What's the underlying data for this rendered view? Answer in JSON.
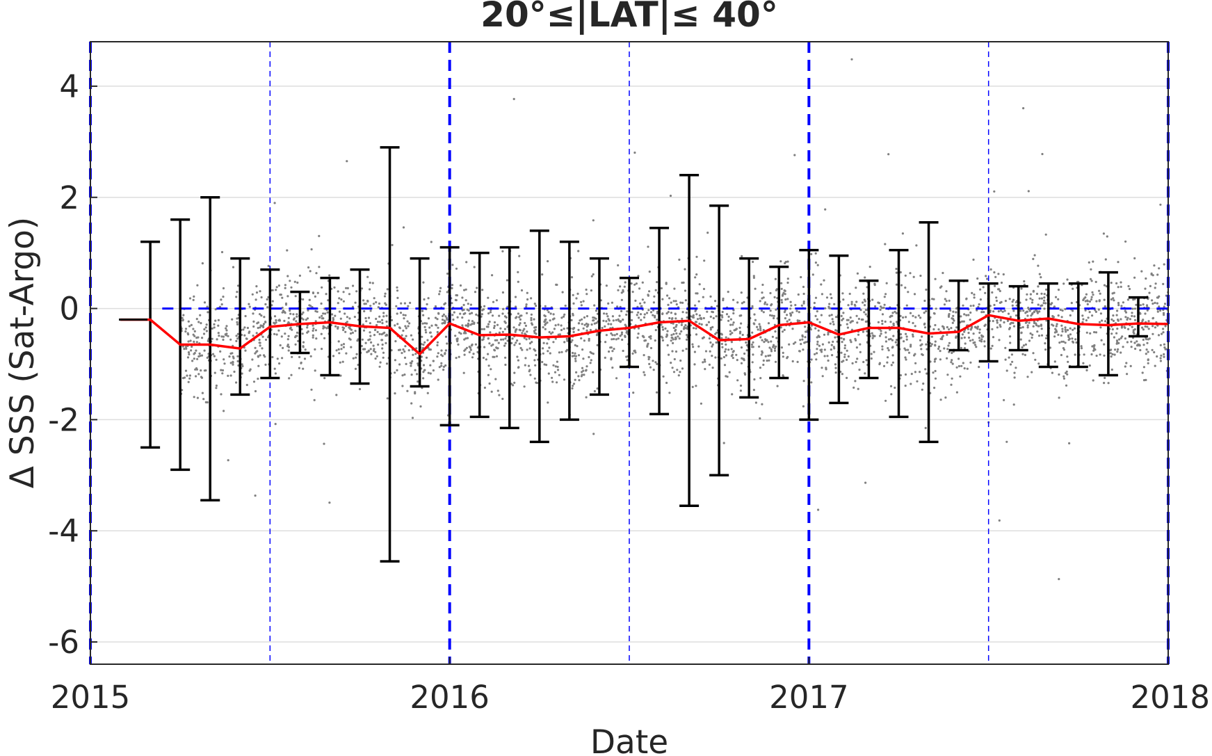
{
  "chart_data": {
    "type": "scatter",
    "title": "20°≤|LAT|≤ 40°",
    "xlabel": "Date",
    "ylabel": "Δ SSS (Sat-Argo)",
    "xlim": [
      2015.0,
      2018.0
    ],
    "ylim": [
      -6.4,
      4.8
    ],
    "xticks": [
      "2015",
      "2016",
      "2017",
      "2018"
    ],
    "yticks": [
      4,
      2,
      0,
      -2,
      -4,
      -6
    ],
    "grid": true,
    "colors": {
      "scatter": "#808080",
      "errorbar": "#000000",
      "mean_line": "#ff0000",
      "reference_line": "#0000ff"
    },
    "reference": {
      "zero_line_y": 0,
      "year_boundaries": [
        "2015",
        "2016",
        "2017",
        "2018"
      ],
      "half_year_markers": [
        "2015-07",
        "2016-07",
        "2017-07"
      ]
    },
    "errorbars": {
      "x": [
        "2015-03",
        "2015-04",
        "2015-05",
        "2015-06",
        "2015-07",
        "2015-08",
        "2015-09",
        "2015-10",
        "2015-11",
        "2015-12",
        "2016-01",
        "2016-02",
        "2016-03",
        "2016-04",
        "2016-05",
        "2016-06",
        "2016-07",
        "2016-08",
        "2016-09",
        "2016-10",
        "2016-11",
        "2016-12",
        "2017-01",
        "2017-02",
        "2017-03",
        "2017-04",
        "2017-05",
        "2017-06",
        "2017-07",
        "2017-08",
        "2017-09",
        "2017-10",
        "2017-11",
        "2017-12"
      ],
      "upper": [
        1.2,
        1.6,
        2.0,
        0.9,
        0.7,
        0.3,
        0.55,
        0.7,
        2.9,
        0.9,
        1.1,
        1.0,
        1.1,
        1.4,
        1.2,
        0.9,
        0.55,
        1.45,
        2.4,
        1.85,
        0.9,
        0.75,
        1.05,
        0.95,
        0.5,
        1.05,
        1.55,
        0.5,
        0.45,
        0.4,
        0.45,
        0.45,
        0.65,
        0.2
      ],
      "lower": [
        -2.5,
        -2.9,
        -3.45,
        -1.55,
        -1.25,
        -0.8,
        -1.2,
        -1.35,
        -4.55,
        -1.4,
        -2.1,
        -1.95,
        -2.15,
        -2.4,
        -2.0,
        -1.55,
        -1.05,
        -1.9,
        -3.55,
        -3.0,
        -1.6,
        -1.25,
        -2.0,
        -1.7,
        -1.25,
        -1.95,
        -2.4,
        -0.75,
        -0.95,
        -0.75,
        -1.05,
        -1.05,
        -1.2,
        -0.5
      ]
    },
    "series": [
      {
        "x": [
          "2015-02",
          "2015-03",
          "2015-04",
          "2015-05",
          "2015-06",
          "2015-07",
          "2015-08",
          "2015-09",
          "2015-10",
          "2015-11",
          "2015-12",
          "2016-01",
          "2016-02",
          "2016-03",
          "2016-04",
          "2016-05",
          "2016-06",
          "2016-07",
          "2016-08",
          "2016-09",
          "2016-10",
          "2016-11",
          "2016-12",
          "2017-01",
          "2017-02",
          "2017-03",
          "2017-04",
          "2017-05",
          "2017-06",
          "2017-07",
          "2017-08",
          "2017-09",
          "2017-10",
          "2017-11",
          "2017-12",
          "2018-01"
        ],
        "y": [
          -0.2,
          -0.2,
          -0.65,
          -0.65,
          -0.72,
          -0.33,
          -0.28,
          -0.25,
          -0.32,
          -0.35,
          -0.82,
          -0.27,
          -0.48,
          -0.47,
          -0.52,
          -0.5,
          -0.4,
          -0.35,
          -0.25,
          -0.22,
          -0.57,
          -0.55,
          -0.3,
          -0.25,
          -0.47,
          -0.35,
          -0.35,
          -0.45,
          -0.42,
          -0.12,
          -0.22,
          -0.18,
          -0.28,
          -0.3,
          -0.27,
          -0.28
        ]
      }
    ]
  }
}
